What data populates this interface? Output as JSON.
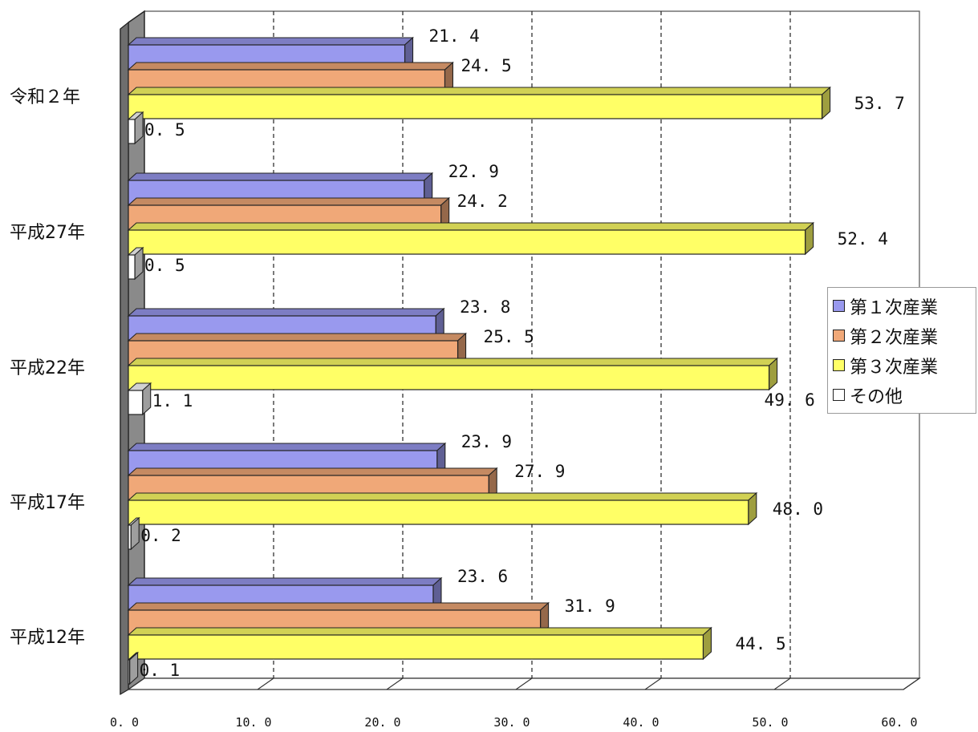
{
  "chart_data": {
    "type": "bar",
    "orientation": "horizontal",
    "three_d": true,
    "categories": [
      "令和２年",
      "平成27年",
      "平成22年",
      "平成17年",
      "平成12年"
    ],
    "series": [
      {
        "name": "第１次産業",
        "color": "#9999ee",
        "values": [
          21.4,
          22.9,
          23.8,
          23.9,
          23.6
        ],
        "labels": [
          "21. 4",
          "22. 9",
          "23. 8",
          "23. 9",
          "23. 6"
        ]
      },
      {
        "name": "第２次産業",
        "color": "#f0a878",
        "values": [
          24.5,
          24.2,
          25.5,
          27.9,
          31.9
        ],
        "labels": [
          "24. 5",
          "24. 2",
          "25. 5",
          "27. 9",
          "31. 9"
        ]
      },
      {
        "name": "第３次産業",
        "color": "#ffff66",
        "values": [
          53.7,
          52.4,
          49.6,
          48.0,
          44.5
        ],
        "labels": [
          "53. 7",
          "52. 4",
          "49. 6",
          "48. 0",
          "44. 5"
        ]
      },
      {
        "name": "その他",
        "color": "#ffffff",
        "values": [
          0.5,
          0.5,
          1.1,
          0.2,
          0.1
        ],
        "labels": [
          "0. 5",
          "0. 5",
          "1. 1",
          "0. 2",
          "0. 1"
        ]
      }
    ],
    "xlim": [
      0,
      60
    ],
    "xticks": [
      "0. 0",
      "10. 0",
      "20. 0",
      "30. 0",
      "40. 0",
      "50. 0",
      "60. 0"
    ],
    "grid": "vertical dashed",
    "legend_position": "right",
    "title": "",
    "xlabel": "",
    "ylabel": ""
  }
}
